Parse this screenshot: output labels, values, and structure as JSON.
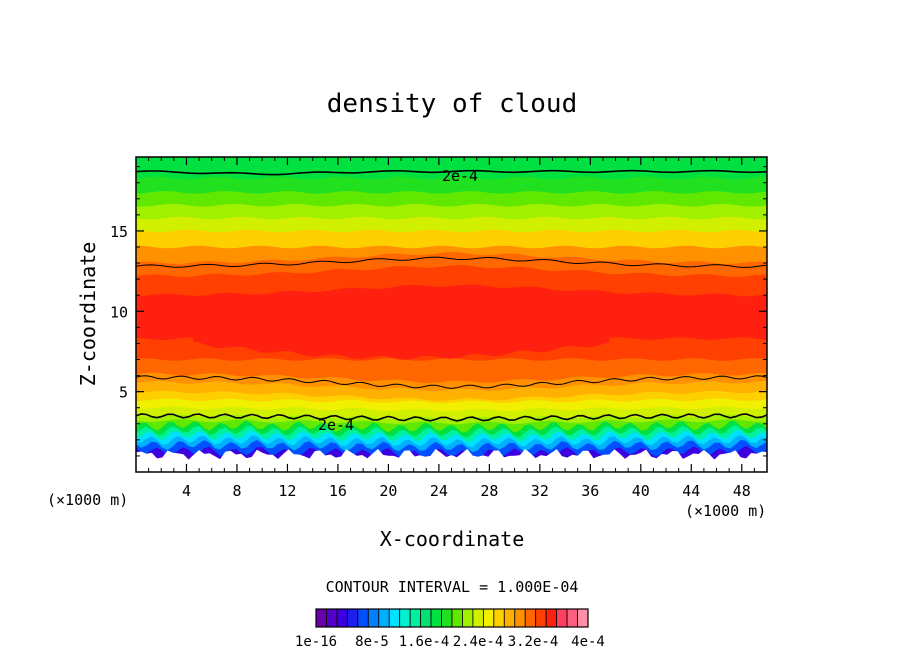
{
  "chart_data": {
    "type": "heatmap",
    "title": "density of cloud",
    "xlabel": "X-coordinate",
    "ylabel": "Z-coordinate",
    "x_unit": "(×1000 m)",
    "y_unit": "(×1000 m)",
    "xlim": [
      0,
      50
    ],
    "ylim": [
      0,
      19.6
    ],
    "x_ticks": [
      4,
      8,
      12,
      16,
      20,
      24,
      28,
      32,
      36,
      40,
      44,
      48
    ],
    "y_ticks": [
      5,
      10,
      15
    ],
    "contour_interval_text": "CONTOUR INTERVAL = 1.000E-04",
    "contour_label": "2e-4",
    "colorbar_labels": [
      "1e-16",
      "8e-5",
      "1.6e-4",
      "2.4e-4",
      "3.2e-4",
      "4e-4"
    ],
    "colorbar_colors": [
      "#6a00a8",
      "#5500c8",
      "#3c00e0",
      "#1e1ef0",
      "#0050ff",
      "#0080ff",
      "#00b0ff",
      "#00e0ff",
      "#00f0d0",
      "#00f0a0",
      "#00e070",
      "#00e040",
      "#20e020",
      "#60e800",
      "#a0f000",
      "#d0f000",
      "#f0f000",
      "#ffd000",
      "#ffb000",
      "#ff9000",
      "#ff6800",
      "#ff4000",
      "#ff2010",
      "#ff4060",
      "#ff6080",
      "#ff8fa8"
    ]
  }
}
